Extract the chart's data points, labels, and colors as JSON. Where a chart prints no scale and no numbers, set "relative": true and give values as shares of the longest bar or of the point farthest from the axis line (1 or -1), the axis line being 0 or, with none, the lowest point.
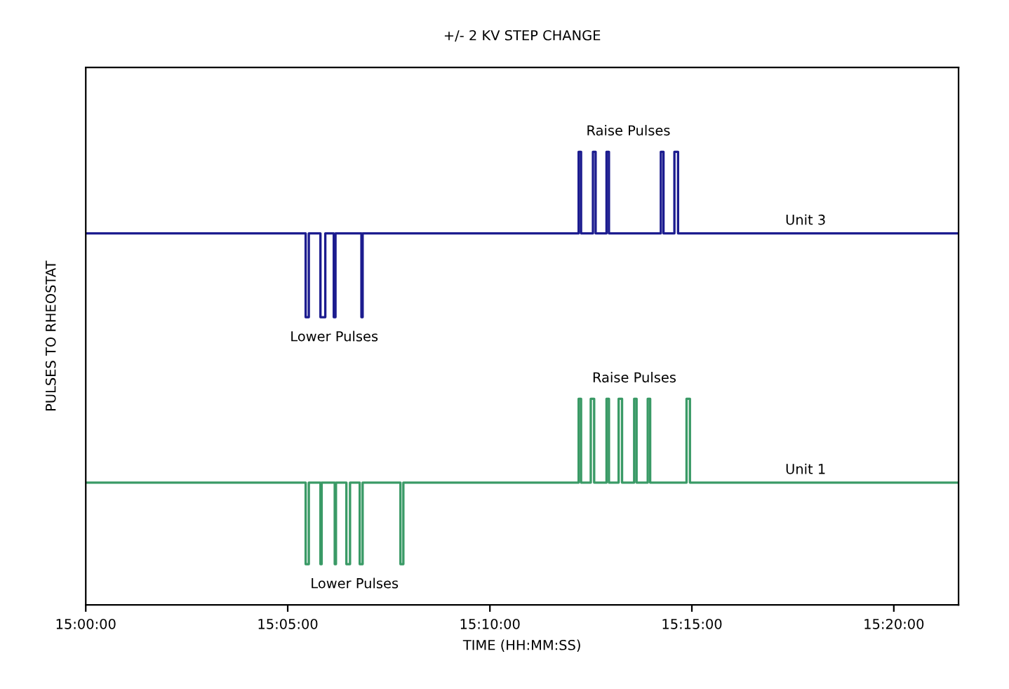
{
  "chart_data": {
    "type": "line",
    "title": "+/- 2 KV STEP CHANGE",
    "xlabel": "TIME (HH:MM:SS)",
    "ylabel": "PULSES TO RHEOSTAT",
    "relative": true,
    "tick_labels": "x",
    "grid": false,
    "legend": false,
    "marker": "none",
    "line_style": "solid",
    "xlim": [
      15.0,
      15.36
    ],
    "xticks": [
      {
        "value": 15.0,
        "label": "15:00:00"
      },
      {
        "value": 15.0833,
        "label": "15:05:00"
      },
      {
        "value": 15.1667,
        "label": "15:10:00"
      },
      {
        "value": 15.25,
        "label": "15:15:00"
      },
      {
        "value": 15.3333,
        "label": "15:20:00"
      }
    ],
    "series": [
      {
        "name": "Unit 3",
        "color": "#1c1c8f",
        "x": [
          15.0,
          15.0907,
          15.0907,
          15.092,
          15.092,
          15.0968,
          15.0968,
          15.0988,
          15.0988,
          15.1023,
          15.1023,
          15.103,
          15.103,
          15.1137,
          15.1137,
          15.1142,
          15.1142,
          15.2033,
          15.2033,
          15.2043,
          15.2043,
          15.2092,
          15.2092,
          15.2103,
          15.2103,
          15.2148,
          15.2148,
          15.2158,
          15.2158,
          15.2372,
          15.2372,
          15.2383,
          15.2383,
          15.2428,
          15.2428,
          15.2443,
          15.2443,
          15.36
        ],
        "values": [
          0.82,
          0.82,
          0.635,
          0.635,
          0.82,
          0.82,
          0.635,
          0.635,
          0.82,
          0.82,
          0.635,
          0.635,
          0.82,
          0.82,
          0.635,
          0.635,
          0.82,
          0.82,
          1.0,
          1.0,
          0.82,
          0.82,
          1.0,
          1.0,
          0.82,
          0.82,
          1.0,
          1.0,
          0.82,
          0.82,
          1.0,
          1.0,
          0.82,
          0.82,
          1.0,
          1.0,
          0.82,
          0.82
        ]
      },
      {
        "name": "Unit 1",
        "color": "#3a9a66",
        "x": [
          15.0,
          15.0907,
          15.0907,
          15.092,
          15.092,
          15.0968,
          15.0968,
          15.0973,
          15.0973,
          15.1027,
          15.1027,
          15.1032,
          15.1032,
          15.1075,
          15.1075,
          15.109,
          15.109,
          15.113,
          15.113,
          15.1142,
          15.1142,
          15.1298,
          15.1298,
          15.131,
          15.131,
          15.2033,
          15.2033,
          15.2043,
          15.2043,
          15.2083,
          15.2083,
          15.2097,
          15.2097,
          15.2148,
          15.2148,
          15.2158,
          15.2158,
          15.2198,
          15.2198,
          15.2212,
          15.2212,
          15.2262,
          15.2262,
          15.2272,
          15.2272,
          15.2318,
          15.2318,
          15.2328,
          15.2328,
          15.2478,
          15.2478,
          15.2492,
          15.2492,
          15.36
        ],
        "values": [
          0.27,
          0.27,
          0.09,
          0.09,
          0.27,
          0.27,
          0.09,
          0.09,
          0.27,
          0.27,
          0.09,
          0.09,
          0.27,
          0.27,
          0.09,
          0.09,
          0.27,
          0.27,
          0.09,
          0.09,
          0.27,
          0.27,
          0.09,
          0.09,
          0.27,
          0.27,
          0.455,
          0.455,
          0.27,
          0.27,
          0.455,
          0.455,
          0.27,
          0.27,
          0.455,
          0.455,
          0.27,
          0.27,
          0.455,
          0.455,
          0.27,
          0.27,
          0.455,
          0.455,
          0.27,
          0.27,
          0.455,
          0.455,
          0.27,
          0.27,
          0.455,
          0.455,
          0.27,
          0.27
        ]
      }
    ],
    "annotations": [
      "Raise Pulses",
      "Lower Pulses",
      "Raise Pulses",
      "Lower Pulses"
    ]
  }
}
